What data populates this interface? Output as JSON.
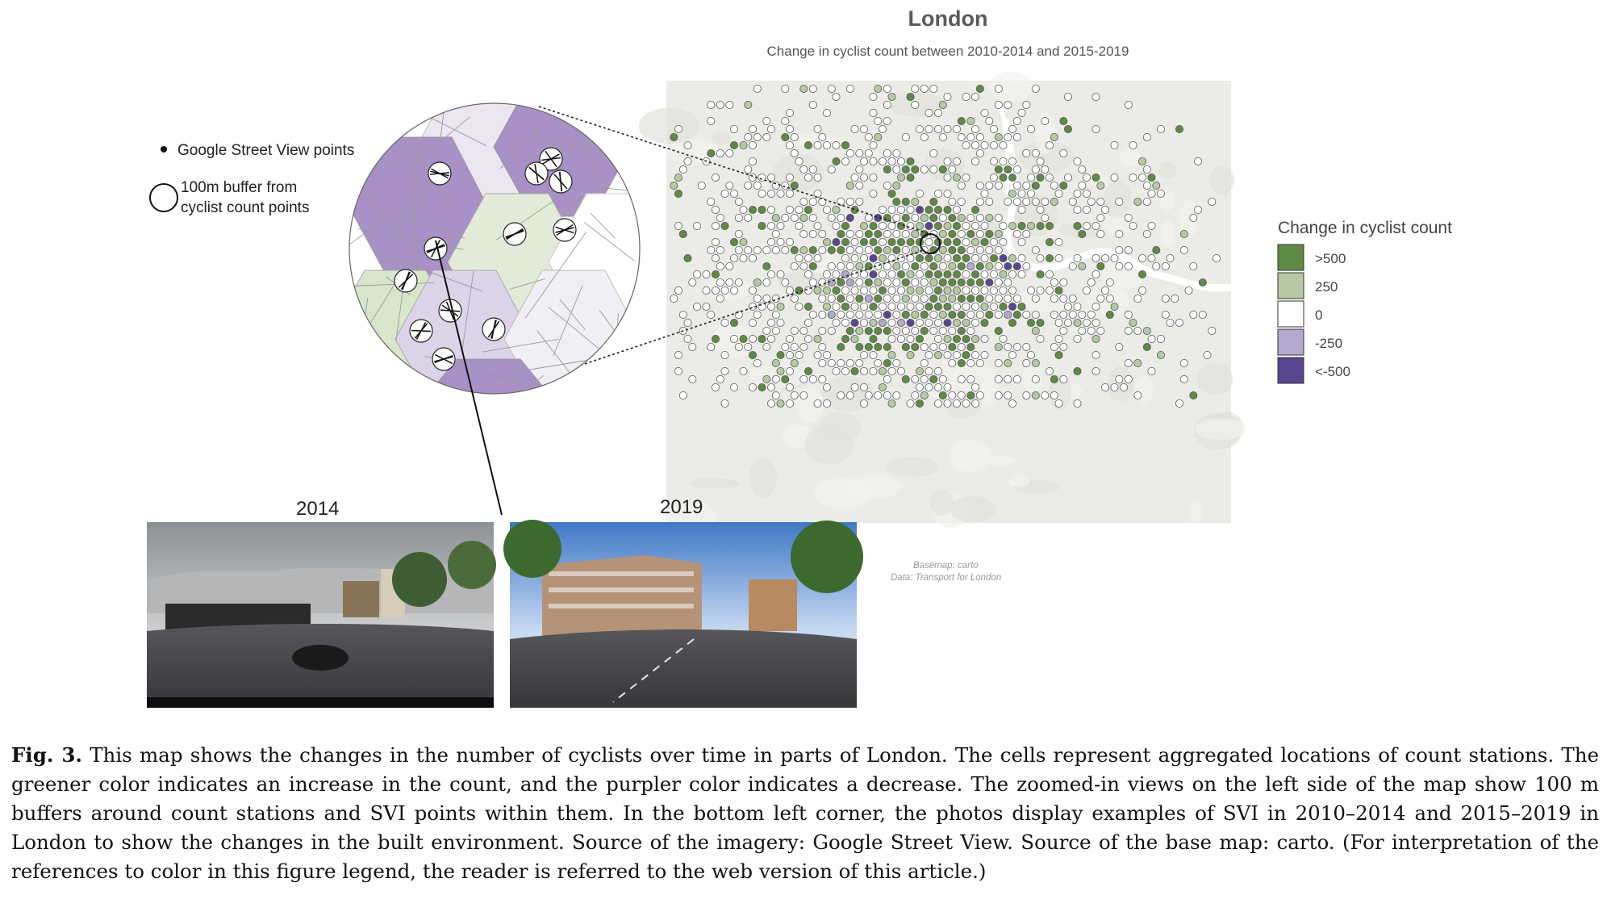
{
  "title": "London",
  "subtitle": "Change in cyclist count between 2010-2014 and 2015-2019",
  "inset_legend": {
    "points_label": "Google Street View points",
    "buffer_label_line1": "100m buffer from",
    "buffer_label_line2": "cyclist count points"
  },
  "legend": {
    "title": "Change in cyclist count",
    "items": [
      {
        "label": ">500",
        "color": "#5f8a45"
      },
      {
        "label": "250",
        "color": "#b5c9a3"
      },
      {
        "label": "0",
        "color": "#ffffff"
      },
      {
        "label": "-250",
        "color": "#b3a8cc"
      },
      {
        "label": "<-500",
        "color": "#5b4590"
      }
    ]
  },
  "photos": {
    "left_year": "2014",
    "right_year": "2019"
  },
  "credits": {
    "line1": "Basemap: carto",
    "line2": "Data: Transport for London"
  },
  "caption": {
    "label": "Fig. 3.",
    "text": "This map shows the changes in the number of cyclists over time in parts of London. The cells represent aggregated locations of count stations. The greener color indicates an increase in the count, and the purpler color indicates a decrease. The zoomed-in views on the left side of the map show 100 m buffers around count stations and SVI points within them. In the bottom left corner, the photos display examples of SVI in 2010–2014 and 2015–2019 in London to show the changes in the built environment. Source of the imagery: Google Street View. Source of the base map: carto. (For interpretation of the references to color in this figure legend, the reader is referred to the web version of this article.)"
  },
  "colors": {
    "strong_increase": "#5f8a45",
    "increase": "#b5c9a3",
    "neutral": "#ffffff",
    "decrease": "#b3a8cc",
    "strong_decrease": "#5b4590",
    "basemap": "#eceae6"
  }
}
